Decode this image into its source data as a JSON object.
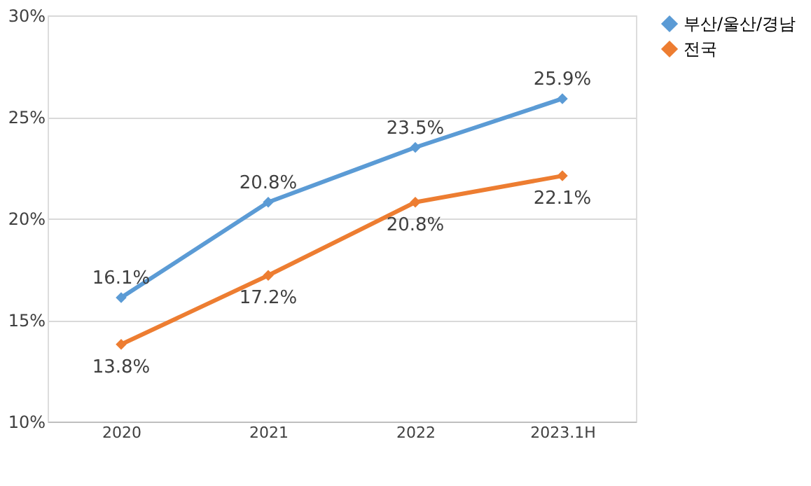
{
  "chart_data": {
    "type": "line",
    "categories": [
      "2020",
      "2021",
      "2022",
      "2023.1H"
    ],
    "series": [
      {
        "name": "부산/울산/경남",
        "color": "#5b9bd5",
        "values": [
          16.1,
          20.8,
          23.5,
          25.9
        ],
        "value_labels": [
          "16.1%",
          "20.8%",
          "23.5%",
          "25.9%"
        ]
      },
      {
        "name": "전국",
        "color": "#ed7d31",
        "values": [
          13.8,
          17.2,
          20.8,
          22.1
        ],
        "value_labels": [
          "13.8%",
          "17.2%",
          "20.8%",
          "22.1%"
        ]
      }
    ],
    "ylim": [
      10,
      30
    ],
    "yticks": [
      {
        "value": 10,
        "label": "10%"
      },
      {
        "value": 15,
        "label": "15%"
      },
      {
        "value": 20,
        "label": "20%"
      },
      {
        "value": 25,
        "label": "25%"
      },
      {
        "value": 30,
        "label": "30%"
      }
    ],
    "grid": "y",
    "legend": "right",
    "marker": "diamond",
    "line_style": "solid"
  }
}
